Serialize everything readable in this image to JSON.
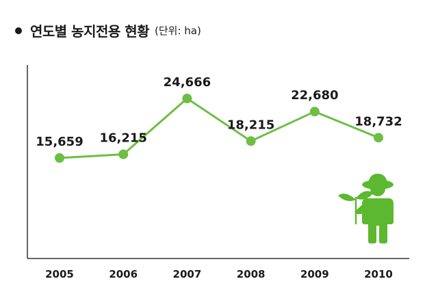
{
  "title": "연도별 농지전용 현황",
  "unit": "(단위: ha)",
  "colors": {
    "line": "#6cbf43",
    "figure": "#5cb82e",
    "axis": "#333333",
    "text": "#1a1a1a"
  },
  "icons": {
    "title_bullet": "bullet-dot",
    "figure": "farmer-holding-sprout-icon"
  },
  "chart_data": {
    "type": "line",
    "title": "연도별 농지전용 현황",
    "unit": "ha",
    "categories": [
      "2005",
      "2006",
      "2007",
      "2008",
      "2009",
      "2010"
    ],
    "values": [
      15659,
      16215,
      24666,
      18215,
      22680,
      18732
    ],
    "value_labels": [
      "15,659",
      "16,215",
      "24,666",
      "18,215",
      "22,680",
      "18,732"
    ],
    "xlabel": "",
    "ylabel": "",
    "grid": false,
    "legend": "none"
  }
}
